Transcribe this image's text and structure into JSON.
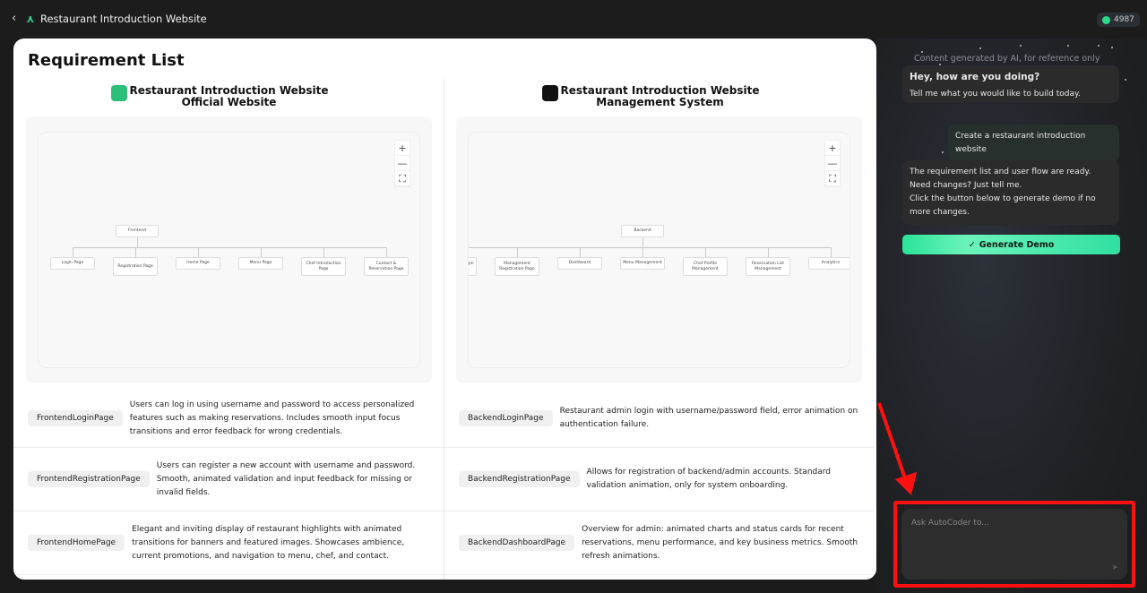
{
  "header": {
    "back_icon": "chevron-left",
    "title": "Restaurant Introduction Website",
    "credits": "4987"
  },
  "main": {
    "title": "Requirement List",
    "columns": [
      {
        "title_line1": "Restaurant Introduction Website",
        "title_line2": "Official Website",
        "icon": "monitor-icon",
        "icon_color": "#2bbf7a",
        "diagram": {
          "root": "Frontend",
          "children": [
            "Login Page",
            "Registration Page",
            "Home Page",
            "Menu Page",
            "Chef Introduction Page",
            "Contact & Reservation Page"
          ]
        },
        "requirements": [
          {
            "tag": "FrontendLoginPage",
            "desc": "Users can log in using username and password to access personalized features such as making reservations. Includes smooth input focus transitions and error feedback for wrong credentials."
          },
          {
            "tag": "FrontendRegistrationPage",
            "desc": "Users can register a new account with username and password. Smooth, animated validation and input feedback for missing or invalid fields."
          },
          {
            "tag": "FrontendHomePage",
            "desc": "Elegant and inviting display of restaurant highlights with animated transitions for banners and featured images. Showcases ambience, current promotions, and navigation to menu, chef, and contact."
          }
        ]
      },
      {
        "title_line1": "Restaurant Introduction Website",
        "title_line2": "Management System",
        "icon": "code-monitor-icon",
        "icon_color": "#111111",
        "diagram": {
          "root": "Backend",
          "children": [
            "Management Login Page",
            "Management Registration Page",
            "Dashboard",
            "Menu Management",
            "Chef Profile Management",
            "Reservation List Management",
            "Analytics"
          ]
        },
        "requirements": [
          {
            "tag": "BackendLoginPage",
            "desc": "Restaurant admin login with username/password field, error animation on authentication failure."
          },
          {
            "tag": "BackendRegistrationPage",
            "desc": "Allows for registration of backend/admin accounts. Standard validation animation, only for system onboarding."
          },
          {
            "tag": "BackendDashboardPage",
            "desc": "Overview for admin: animated charts and status cards for recent reservations, menu performance, and key business metrics. Smooth refresh animations."
          }
        ]
      }
    ],
    "zoom_controls": {
      "zoom_in": "+",
      "zoom_out": "—",
      "fit": "⛶"
    }
  },
  "chat": {
    "note": "Content generated by AI, for reference only",
    "messages": [
      {
        "role": "assistant",
        "title": "Hey, how are you doing?",
        "text": "Tell me what you would like to build today."
      },
      {
        "role": "user",
        "text": "Create a restaurant introduction website"
      },
      {
        "role": "assistant",
        "text": "The requirement list and user flow are ready. Need changes? Just tell me.",
        "text2": "Click the button below to generate demo if no more changes."
      }
    ],
    "generate_button": "Generate Demo",
    "input_placeholder": "Ask AutoCoder to...",
    "accent": "#2be39a",
    "annotation_color": "#ff1010"
  }
}
